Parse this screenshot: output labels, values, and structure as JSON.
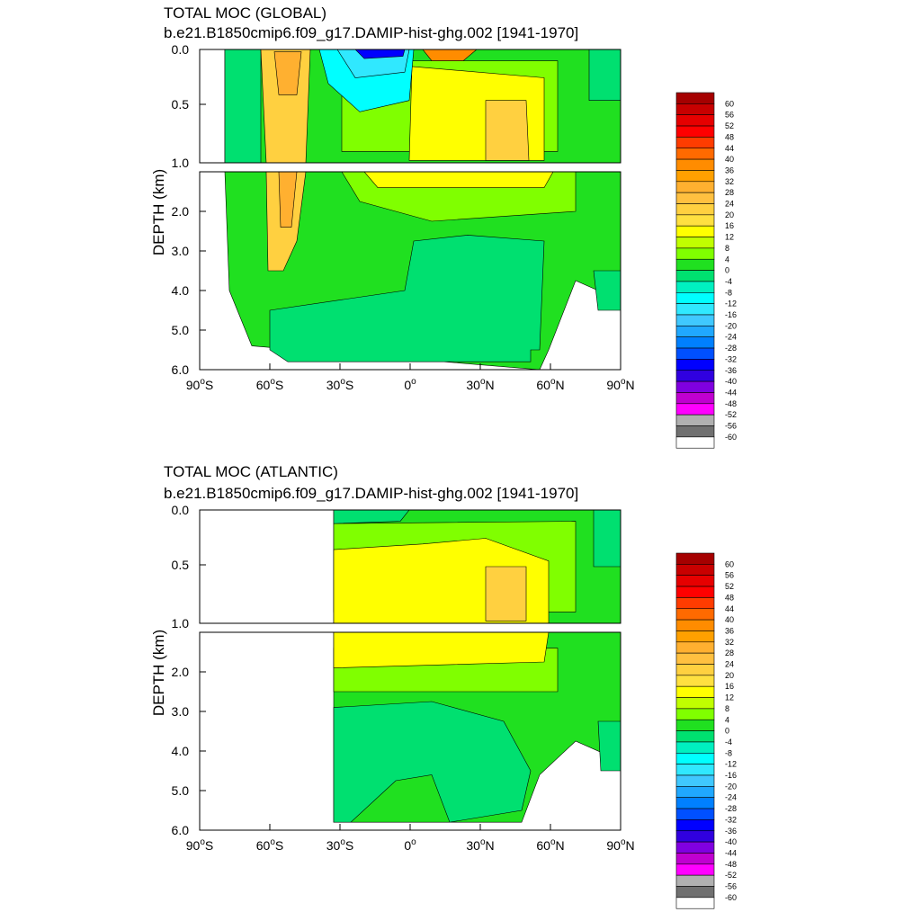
{
  "panels": [
    {
      "title1": "TOTAL MOC (GLOBAL)",
      "title2": "b.e21.B1850cmip6.f09_g17.DAMIP-hist-ghg.002 [1941-1970]",
      "ylabel": "DEPTH (km)",
      "upper_ticks": [
        "0.0",
        "0.5",
        "1.0"
      ],
      "lower_ticks": [
        "2.0",
        "3.0",
        "4.0",
        "5.0",
        "6.0"
      ],
      "x_ticks": [
        {
          "num": "90",
          "sup": "o",
          "hem": "S"
        },
        {
          "num": "60",
          "sup": "o",
          "hem": "S"
        },
        {
          "num": "30",
          "sup": "o",
          "hem": "S"
        },
        {
          "num": "0",
          "sup": "o",
          "hem": ""
        },
        {
          "num": "30",
          "sup": "o",
          "hem": "N"
        },
        {
          "num": "60",
          "sup": "o",
          "hem": "N"
        },
        {
          "num": "90",
          "sup": "o",
          "hem": "N"
        }
      ]
    },
    {
      "title1": "TOTAL MOC (ATLANTIC)",
      "title2": "b.e21.B1850cmip6.f09_g17.DAMIP-hist-ghg.002 [1941-1970]",
      "ylabel": "DEPTH (km)",
      "upper_ticks": [
        "0.0",
        "0.5",
        "1.0"
      ],
      "lower_ticks": [
        "2.0",
        "3.0",
        "4.0",
        "5.0",
        "6.0"
      ],
      "x_ticks": [
        {
          "num": "90",
          "sup": "o",
          "hem": "S"
        },
        {
          "num": "60",
          "sup": "o",
          "hem": "S"
        },
        {
          "num": "30",
          "sup": "o",
          "hem": "S"
        },
        {
          "num": "0",
          "sup": "o",
          "hem": ""
        },
        {
          "num": "30",
          "sup": "o",
          "hem": "N"
        },
        {
          "num": "60",
          "sup": "o",
          "hem": "N"
        },
        {
          "num": "90",
          "sup": "o",
          "hem": "N"
        }
      ]
    }
  ],
  "colorbar": {
    "labels": [
      "60",
      "56",
      "52",
      "48",
      "44",
      "40",
      "36",
      "32",
      "28",
      "24",
      "20",
      "16",
      "12",
      "8",
      "4",
      "0",
      "-4",
      "-8",
      "-12",
      "-16",
      "-20",
      "-24",
      "-28",
      "-32",
      "-36",
      "-40",
      "-44",
      "-48",
      "-52",
      "-56",
      "-60"
    ],
    "colors": [
      "#a50000",
      "#c80000",
      "#e60000",
      "#ff0000",
      "#ff3c00",
      "#ff6a00",
      "#ff8c00",
      "#ffa000",
      "#ffb030",
      "#ffc040",
      "#ffd040",
      "#ffe040",
      "#ffff00",
      "#c0ff00",
      "#80ff00",
      "#20e020",
      "#00e070",
      "#00f0c0",
      "#00ffff",
      "#30e8ff",
      "#40c8ff",
      "#20a8ff",
      "#0080ff",
      "#0050ff",
      "#0000ff",
      "#3000e0",
      "#8000e0",
      "#c000d0",
      "#ff00ff",
      "#b0b0b0",
      "#707070",
      "#ffffff"
    ]
  },
  "chart_data": [
    {
      "type": "heatmap",
      "title": "TOTAL MOC (GLOBAL)",
      "subtitle": "b.e21.B1850cmip6.f09_g17.DAMIP-hist-ghg.002 [1941-1970]",
      "ylabel": "DEPTH (km)",
      "xlim": [
        -90,
        90
      ],
      "ylim": [
        6.0,
        0.0
      ],
      "upper_depth_range": [
        0.0,
        1.0
      ],
      "lower_depth_range": [
        1.0,
        6.0
      ],
      "contour_levels": [
        -60,
        -56,
        -52,
        -48,
        -44,
        -40,
        -36,
        -32,
        -28,
        -24,
        -20,
        -16,
        -12,
        -8,
        -4,
        0,
        4,
        8,
        12,
        16,
        20,
        24,
        28,
        32,
        36,
        40,
        44,
        48,
        52,
        56,
        60
      ],
      "features": [
        {
          "lat_range": [
            -60,
            -45
          ],
          "depth_range": [
            0.0,
            3.2
          ],
          "value_approx": 20
        },
        {
          "lat_range": [
            -30,
            -2
          ],
          "depth_range": [
            0.0,
            0.4
          ],
          "value_approx": -36
        },
        {
          "lat_range": [
            5,
            25
          ],
          "depth_range": [
            0.0,
            0.15
          ],
          "value_approx": 28
        },
        {
          "lat_range": [
            0,
            55
          ],
          "depth_range": [
            0.1,
            1.4
          ],
          "value_approx": 16
        },
        {
          "lat_range": [
            30,
            50
          ],
          "depth_range": [
            0.3,
            1.0
          ],
          "value_approx": 20
        },
        {
          "lat_range": [
            0,
            60
          ],
          "depth_range": [
            3.0,
            5.5
          ],
          "value_approx": -2
        }
      ]
    },
    {
      "type": "heatmap",
      "title": "TOTAL MOC (ATLANTIC)",
      "subtitle": "b.e21.B1850cmip6.f09_g17.DAMIP-hist-ghg.002 [1941-1970]",
      "ylabel": "DEPTH (km)",
      "xlim": [
        -90,
        90
      ],
      "ylim": [
        6.0,
        0.0
      ],
      "upper_depth_range": [
        0.0,
        1.0
      ],
      "lower_depth_range": [
        1.0,
        6.0
      ],
      "contour_levels": [
        -60,
        -56,
        -52,
        -48,
        -44,
        -40,
        -36,
        -32,
        -28,
        -24,
        -20,
        -16,
        -12,
        -8,
        -4,
        0,
        4,
        8,
        12,
        16,
        20,
        24,
        28,
        32,
        36,
        40,
        44,
        48,
        52,
        56,
        60
      ],
      "features": [
        {
          "lat_range": [
            -34,
            55
          ],
          "depth_range": [
            0.3,
            2.0
          ],
          "value_approx": 16
        },
        {
          "lat_range": [
            30,
            50
          ],
          "depth_range": [
            0.5,
            1.0
          ],
          "value_approx": 20
        },
        {
          "lat_range": [
            -34,
            60
          ],
          "depth_range": [
            3.0,
            5.5
          ],
          "value_approx": -2
        },
        {
          "lat_range": [
            -34,
            0
          ],
          "depth_range": [
            0.0,
            0.05
          ],
          "value_approx": -4
        }
      ]
    }
  ]
}
